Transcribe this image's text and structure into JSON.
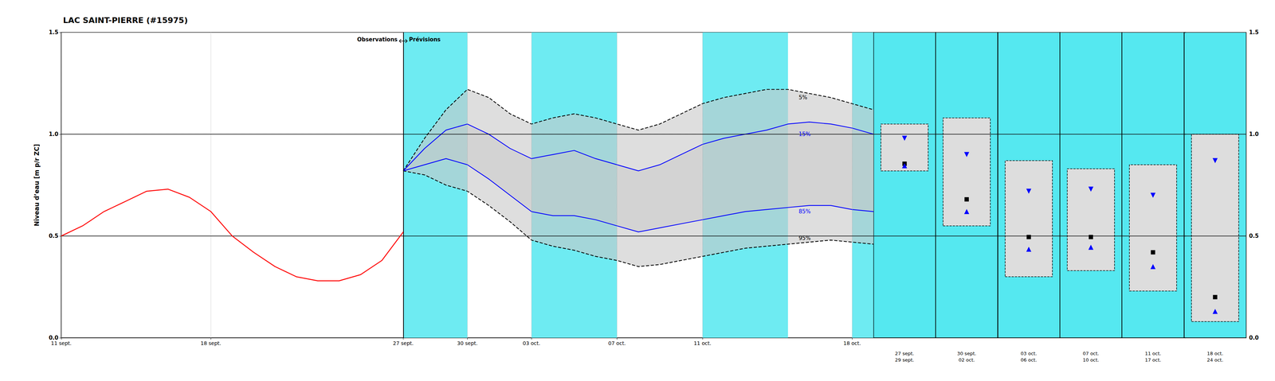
{
  "chart_data": {
    "type": "line",
    "title": "LAC SAINT-PIERRE (#15975)",
    "ylabel": "Niveau d’eau [m p/r ZC]",
    "xlim": [
      0,
      38
    ],
    "xticks": [
      {
        "value": 0,
        "label": "11 sept."
      },
      {
        "value": 7,
        "label": "18 sept."
      },
      {
        "value": 16,
        "label": "27 sept."
      },
      {
        "value": 19,
        "label": "30 sept."
      },
      {
        "value": 22,
        "label": "03 oct."
      },
      {
        "value": 26,
        "label": "07 oct."
      },
      {
        "value": 30,
        "label": "11 oct."
      },
      {
        "value": 37,
        "label": "18 oct."
      }
    ],
    "ylim": [
      0.0,
      1.5
    ],
    "yticks": [
      {
        "value": 0.0,
        "label": "0.0"
      },
      {
        "value": 0.5,
        "label": "0.5"
      },
      {
        "value": 1.0,
        "label": "1.0"
      },
      {
        "value": 1.5,
        "label": "1.5"
      }
    ],
    "y2lim": [
      0.0,
      1.5
    ],
    "y2ticks": [
      {
        "value": 0.0,
        "label": "0.0"
      },
      {
        "value": 0.5,
        "label": "0.5"
      },
      {
        "value": 1.0,
        "label": "1.0"
      },
      {
        "value": 1.5,
        "label": "1.5"
      }
    ],
    "grid": true,
    "spans": {
      "color": "#55E8F0",
      "ranges": [
        [
          16,
          19
        ],
        [
          22,
          26
        ],
        [
          30,
          34
        ],
        [
          37,
          38
        ]
      ]
    },
    "series": [
      {
        "color": "red",
        "line_style": "solid",
        "x": [
          0,
          1,
          2,
          3,
          4,
          5,
          6,
          7,
          8,
          9,
          10,
          11,
          12,
          13,
          14,
          15,
          16
        ],
        "values": [
          0.5,
          0.55,
          0.62,
          0.67,
          0.72,
          0.73,
          0.69,
          0.62,
          0.5,
          0.42,
          0.35,
          0.3,
          0.28,
          0.28,
          0.31,
          0.38,
          0.52
        ]
      }
    ],
    "bands": [
      {
        "color": "#C8C8C8",
        "x": [
          16,
          17,
          18,
          19,
          20,
          21,
          22,
          23,
          24,
          25,
          26,
          27,
          28,
          29,
          30,
          31,
          32,
          33,
          34,
          35,
          36,
          37,
          38
        ],
        "upper": {
          "color": "black",
          "line_style": "dashed",
          "values": [
            0.82,
            0.98,
            1.12,
            1.22,
            1.18,
            1.1,
            1.05,
            1.08,
            1.1,
            1.08,
            1.05,
            1.02,
            1.05,
            1.1,
            1.15,
            1.18,
            1.2,
            1.22,
            1.22,
            1.2,
            1.18,
            1.15,
            1.12
          ]
        },
        "lower": {
          "color": "black",
          "line_style": "dashed",
          "values": [
            0.82,
            0.8,
            0.75,
            0.72,
            0.65,
            0.57,
            0.48,
            0.45,
            0.43,
            0.4,
            0.38,
            0.35,
            0.36,
            0.38,
            0.4,
            0.42,
            0.44,
            0.45,
            0.46,
            0.47,
            0.48,
            0.47,
            0.46
          ]
        }
      },
      {
        "color": "#C8C8C8",
        "x": [
          16,
          17,
          18,
          19,
          20,
          21,
          22,
          23,
          24,
          25,
          26,
          27,
          28,
          29,
          30,
          31,
          32,
          33,
          34,
          35,
          36,
          37,
          38
        ],
        "upper": {
          "color": "blue",
          "line_style": "solid",
          "values": [
            0.82,
            0.93,
            1.02,
            1.05,
            1.0,
            0.93,
            0.88,
            0.9,
            0.92,
            0.88,
            0.85,
            0.82,
            0.85,
            0.9,
            0.95,
            0.98,
            1.0,
            1.02,
            1.05,
            1.06,
            1.05,
            1.03,
            1.0
          ]
        },
        "lower": {
          "color": "blue",
          "line_style": "solid",
          "values": [
            0.82,
            0.85,
            0.88,
            0.85,
            0.78,
            0.7,
            0.62,
            0.6,
            0.6,
            0.58,
            0.55,
            0.52,
            0.54,
            0.56,
            0.58,
            0.6,
            0.62,
            0.63,
            0.64,
            0.65,
            0.65,
            0.63,
            0.62
          ]
        }
      }
    ],
    "annotations": [
      {
        "text": "5%",
        "x": 34.5,
        "y": 1.18,
        "color": "black"
      },
      {
        "text": "15%",
        "x": 34.5,
        "y": 1.0,
        "color": "blue"
      },
      {
        "text": "85%",
        "x": 34.5,
        "y": 0.62,
        "color": "blue"
      },
      {
        "text": "95%",
        "x": 34.5,
        "y": 0.49,
        "color": "black"
      }
    ],
    "hlines": [
      0.5,
      1.0
    ],
    "divider": {
      "x": 16,
      "left_label": "Observations",
      "right_label": "Prévisions"
    },
    "panels": [
      {
        "label_top": "27 sept.",
        "label_bottom": "29 sept.",
        "color": "#55E8F0",
        "box_low": 0.82,
        "box_high": 1.05,
        "marker": 0.855,
        "triangle_up": 0.845,
        "triangle_down": 0.98
      },
      {
        "label_top": "30 sept.",
        "label_bottom": "02 oct.",
        "color": "#55E8F0",
        "box_low": 0.55,
        "box_high": 1.08,
        "marker": 0.68,
        "triangle_up": 0.62,
        "triangle_down": 0.9
      },
      {
        "label_top": "03 oct.",
        "label_bottom": "06 oct.",
        "color": "#55E8F0",
        "box_low": 0.3,
        "box_high": 0.87,
        "marker": 0.495,
        "triangle_up": 0.435,
        "triangle_down": 0.72
      },
      {
        "label_top": "07 oct.",
        "label_bottom": "10 oct.",
        "color": "#55E8F0",
        "box_low": 0.33,
        "box_high": 0.83,
        "marker": 0.495,
        "triangle_up": 0.445,
        "triangle_down": 0.73
      },
      {
        "label_top": "11 oct.",
        "label_bottom": "17 oct.",
        "color": "#55E8F0",
        "box_low": 0.23,
        "box_high": 0.85,
        "marker": 0.42,
        "triangle_up": 0.35,
        "triangle_down": 0.7
      },
      {
        "label_top": "18 oct.",
        "label_bottom": "24 oct.",
        "color": "#55E8F0",
        "box_low": 0.08,
        "box_high": 1.0,
        "marker": 0.2,
        "triangle_up": 0.13,
        "triangle_down": 0.87
      }
    ]
  }
}
